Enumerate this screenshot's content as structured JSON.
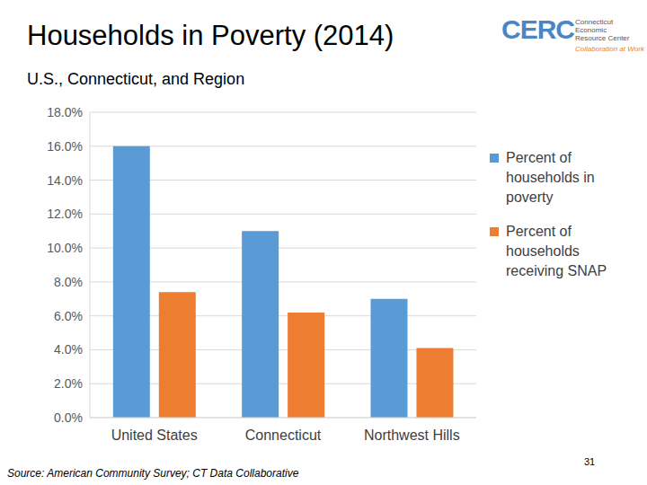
{
  "chart_data": {
    "type": "bar",
    "title": "Households in Poverty (2014)",
    "subtitle": "U.S., Connecticut, and Region",
    "categories": [
      "United States",
      "Connecticut",
      "Northwest Hills"
    ],
    "series": [
      {
        "name": "Percent of households in poverty",
        "color": "#5b9bd5",
        "values": [
          16.0,
          11.0,
          7.0
        ]
      },
      {
        "name": "Percent of households receiving SNAP",
        "color": "#ed7d31",
        "values": [
          7.4,
          6.2,
          4.1
        ]
      }
    ],
    "ylim": [
      0,
      18
    ],
    "yticks": [
      {
        "value": 0,
        "label": "0.0%"
      },
      {
        "value": 2,
        "label": "2.0%"
      },
      {
        "value": 4,
        "label": "4.0%"
      },
      {
        "value": 6,
        "label": "6.0%"
      },
      {
        "value": 8,
        "label": "8.0%"
      },
      {
        "value": 10,
        "label": "10.0%"
      },
      {
        "value": 12,
        "label": "12.0%"
      },
      {
        "value": 14,
        "label": "14.0%"
      },
      {
        "value": 16,
        "label": "16.0%"
      },
      {
        "value": 18,
        "label": "18.0%"
      }
    ],
    "grid": true,
    "legend": "right",
    "annotations": [
      "Source: American Community Survey; CT Data Collaborative",
      "31",
      "CERC",
      "Connecticut",
      "Economic",
      "Resource Center",
      "Collaboration at Work"
    ]
  }
}
